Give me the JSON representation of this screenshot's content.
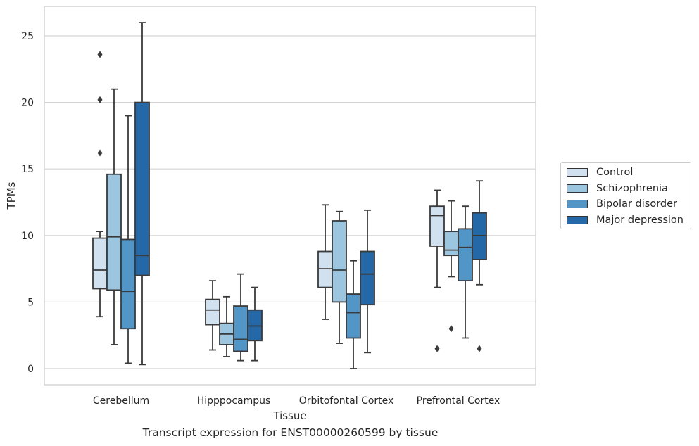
{
  "chart_data": {
    "type": "box",
    "title": "",
    "caption": "Transcript expression for ENST00000260599 by tissue",
    "xlabel": "Tissue",
    "ylabel": "TPMs",
    "ylim": [
      -1.2,
      27.2
    ],
    "yticks": [
      "0",
      "5",
      "10",
      "15",
      "20",
      "25"
    ],
    "grid": "horizontal",
    "legend_position": "right",
    "categories": [
      "Cerebellum",
      "Hipppocampus",
      "Orbitofontal Cortex",
      "Prefrontal Cortex"
    ],
    "series": [
      {
        "name": "Control",
        "color": "#d1e1f0",
        "boxes": [
          {
            "whislo": 3.9,
            "q1": 6.0,
            "med": 7.4,
            "q3": 9.8,
            "whishi": 10.3,
            "fliers": [
              16.2,
              20.2,
              23.6
            ]
          },
          {
            "whislo": 1.4,
            "q1": 3.3,
            "med": 4.4,
            "q3": 5.2,
            "whishi": 6.6,
            "fliers": []
          },
          {
            "whislo": 3.7,
            "q1": 6.1,
            "med": 7.5,
            "q3": 8.8,
            "whishi": 12.3,
            "fliers": []
          },
          {
            "whislo": 6.1,
            "q1": 9.2,
            "med": 11.5,
            "q3": 12.2,
            "whishi": 13.4,
            "fliers": [
              1.5
            ]
          }
        ]
      },
      {
        "name": "Schizophrenia",
        "color": "#9cc5df",
        "boxes": [
          {
            "whislo": 1.8,
            "q1": 5.9,
            "med": 9.9,
            "q3": 14.6,
            "whishi": 21.0,
            "fliers": []
          },
          {
            "whislo": 0.9,
            "q1": 1.8,
            "med": 2.6,
            "q3": 3.4,
            "whishi": 5.4,
            "fliers": []
          },
          {
            "whislo": 1.9,
            "q1": 5.0,
            "med": 7.4,
            "q3": 11.1,
            "whishi": 11.8,
            "fliers": []
          },
          {
            "whislo": 6.9,
            "q1": 8.5,
            "med": 8.9,
            "q3": 10.3,
            "whishi": 12.6,
            "fliers": [
              3.0
            ]
          }
        ]
      },
      {
        "name": "Bipolar disorder",
        "color": "#5295c7",
        "boxes": [
          {
            "whislo": 0.4,
            "q1": 3.0,
            "med": 5.8,
            "q3": 9.7,
            "whishi": 19.0,
            "fliers": []
          },
          {
            "whislo": 0.6,
            "q1": 1.3,
            "med": 2.2,
            "q3": 4.7,
            "whishi": 7.1,
            "fliers": []
          },
          {
            "whislo": 0.0,
            "q1": 2.3,
            "med": 4.2,
            "q3": 5.6,
            "whishi": 8.1,
            "fliers": []
          },
          {
            "whislo": 2.3,
            "q1": 6.6,
            "med": 9.1,
            "q3": 10.5,
            "whishi": 12.2,
            "fliers": []
          }
        ]
      },
      {
        "name": "Major depression",
        "color": "#2568a8",
        "boxes": [
          {
            "whislo": 0.3,
            "q1": 7.0,
            "med": 8.5,
            "q3": 20.0,
            "whishi": 26.0,
            "fliers": []
          },
          {
            "whislo": 0.6,
            "q1": 2.1,
            "med": 3.2,
            "q3": 4.4,
            "whishi": 6.1,
            "fliers": []
          },
          {
            "whislo": 1.2,
            "q1": 4.8,
            "med": 7.1,
            "q3": 8.8,
            "whishi": 11.9,
            "fliers": []
          },
          {
            "whislo": 6.3,
            "q1": 8.2,
            "med": 10.0,
            "q3": 11.7,
            "whishi": 14.1,
            "fliers": [
              1.5
            ]
          }
        ]
      }
    ]
  }
}
